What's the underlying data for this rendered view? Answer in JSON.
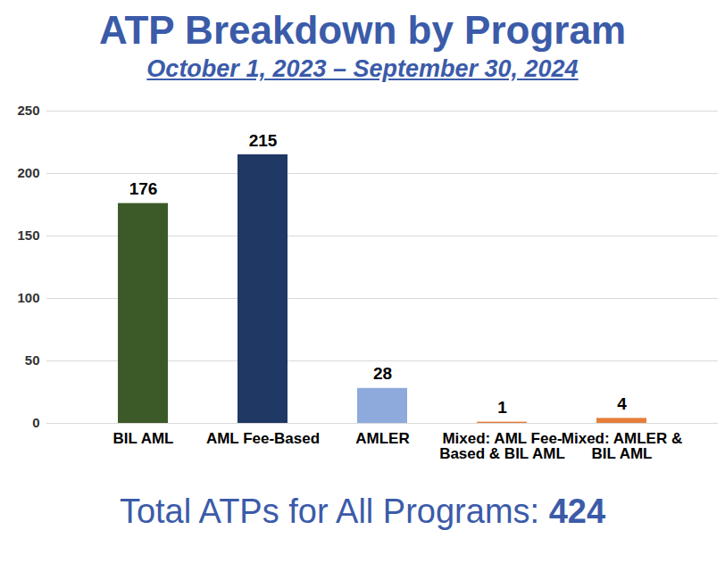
{
  "chart_data": {
    "type": "bar",
    "title": "ATP Breakdown by Program",
    "subtitle": "October 1, 2023 – September 30, 2024",
    "categories": [
      "BIL AML",
      "AML Fee-Based",
      "AMLER",
      "Mixed: AML Fee-Based & BIL AML",
      "Mixed: AMLER & BIL AML"
    ],
    "values": [
      176,
      215,
      28,
      1,
      4
    ],
    "colors": [
      "#3c5a27",
      "#203864",
      "#8eaadc",
      "#e67e3a",
      "#e67e3a"
    ],
    "ylim": [
      0,
      250
    ],
    "yticks": [
      0,
      50,
      100,
      150,
      200,
      250
    ],
    "grid": true,
    "data_labels": true,
    "annotation": {
      "text": "Total ATPs for All Programs:",
      "value": 424
    }
  }
}
